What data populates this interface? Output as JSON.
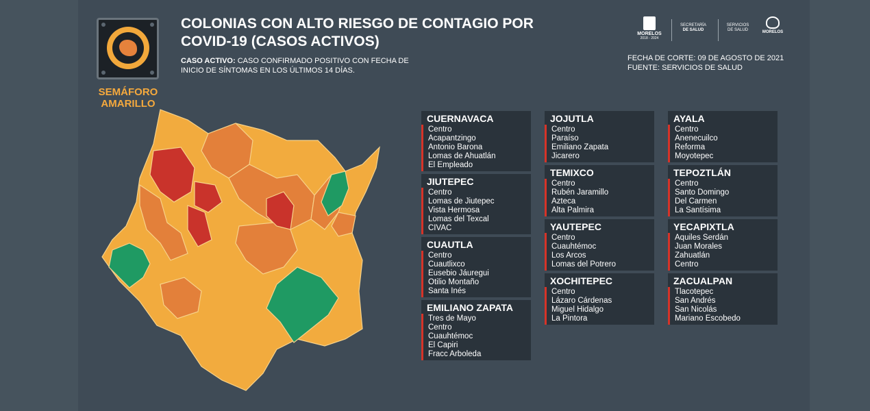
{
  "header": {
    "title_line1": "COLONIAS CON ALTO RIESGO DE CONTAGIO POR",
    "title_line2": "COVID-19 (CASOS ACTIVOS)",
    "definition_label": "CASO ACTIVO:",
    "definition_line1": " CASO CONFIRMADO POSITIVO CON FECHA DE",
    "definition_line2": "INICIO DE SÍNTOMAS EN LOS ÚLTIMOS 14 DÍAS.",
    "semaforo_line1": "SEMÁFORO",
    "semaforo_line2": "AMARILLO",
    "cut_date": "FECHA DE CORTE: 09 DE AGOSTO DE 2021",
    "source": "FUENTE: SERVICIOS DE SALUD"
  },
  "brands": {
    "morelos": "MORELOS",
    "morelos_years": "2018 - 2024",
    "secretaria_l1": "SECRETARÍA",
    "secretaria_l2": "DE SALUD",
    "servicios_l1": "SERVICIOS",
    "servicios_l2": "DE SALUD",
    "morelos2": "MORELOS"
  },
  "colors": {
    "high": "#c9332b",
    "medium": "#e3803a",
    "low": "#f2ab3e",
    "green": "#1f9a63",
    "accent_bar": "#d63328",
    "panel": "#2a333b"
  },
  "columns": [
    [
      {
        "name": "CUERNAVACA",
        "items": [
          "Centro",
          "Acapantzingo",
          "Antonio Barona",
          "Lomas de Ahuatlán",
          "El Empleado"
        ]
      },
      {
        "name": "JIUTEPEC",
        "items": [
          "Centro",
          "Lomas de Jiutepec",
          "Vista Hermosa",
          "Lomas del Texcal",
          "CIVAC"
        ]
      },
      {
        "name": "CUAUTLA",
        "items": [
          "Centro",
          "Cuautlixco",
          "Eusebio Jáuregui",
          "Otilio Montaño",
          "Santa Inés"
        ]
      },
      {
        "name": "EMILIANO ZAPATA",
        "items": [
          "Tres de Mayo",
          "Centro",
          "Cuauhtémoc",
          "El Capiri",
          "Fracc Arboleda"
        ]
      }
    ],
    [
      {
        "name": "JOJUTLA",
        "items": [
          "Centro",
          "Paraíso",
          "Emiliano Zapata",
          "Jicarero"
        ]
      },
      {
        "name": "TEMIXCO",
        "items": [
          "Centro",
          "Rubén Jaramillo",
          "Azteca",
          "Alta Palmira"
        ]
      },
      {
        "name": "YAUTEPEC",
        "items": [
          "Centro",
          "Cuauhtémoc",
          "Los Arcos",
          "Lomas del Potrero"
        ]
      },
      {
        "name": "XOCHITEPEC",
        "items": [
          "Centro",
          "Lázaro Cárdenas",
          "Miguel Hidalgo",
          "La Pintora"
        ]
      }
    ],
    [
      {
        "name": "AYALA",
        "items": [
          "Centro",
          "Anenecuilco",
          "Reforma",
          "Moyotepec"
        ]
      },
      {
        "name": "TEPOZTLÁN",
        "items": [
          "Centro",
          "Santo Domingo",
          "Del Carmen",
          "La Santísima"
        ]
      },
      {
        "name": "YECAPIXTLA",
        "items": [
          "Aquiles Serdán",
          "Juan Morales",
          "Zahuatlán",
          "Centro"
        ]
      },
      {
        "name": "ZACUALPAN",
        "items": [
          "Tlacotepec",
          "San Andrés",
          "San Nicolás",
          "Mariano Escobedo"
        ]
      }
    ]
  ]
}
